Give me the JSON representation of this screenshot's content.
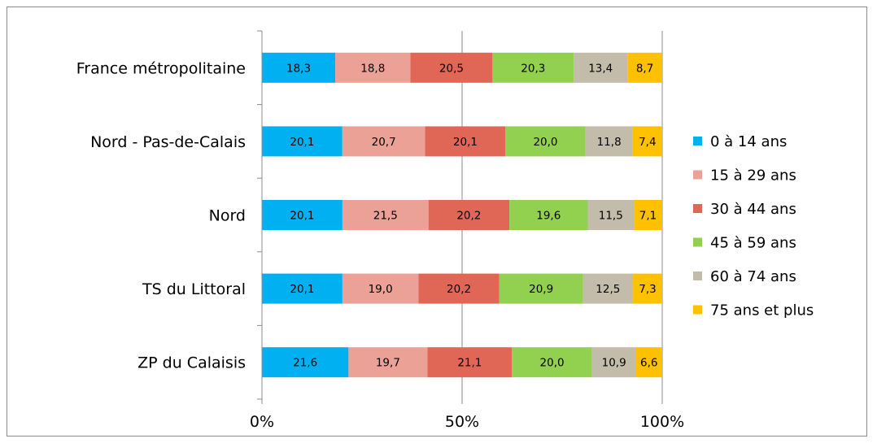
{
  "chart_data": {
    "type": "bar",
    "orientation": "horizontal",
    "stacked": "percent",
    "categories": [
      "France métropolitaine",
      "Nord - Pas-de-Calais",
      "Nord",
      "TS du Littoral",
      "ZP du Calaisis"
    ],
    "series": [
      {
        "name": "0 à 14 ans",
        "color": "#00b0f0",
        "values": [
          18.3,
          20.1,
          20.1,
          20.1,
          21.6
        ],
        "labels": [
          "18,3",
          "20,1",
          "20,1",
          "20,1",
          "21,6"
        ]
      },
      {
        "name": "15 à 29 ans",
        "color": "#eca196",
        "values": [
          18.8,
          20.7,
          21.5,
          19.0,
          19.7
        ],
        "labels": [
          "18,8",
          "20,7",
          "21,5",
          "19,0",
          "19,7"
        ]
      },
      {
        "name": "30 à 44 ans",
        "color": "#e06656",
        "values": [
          20.5,
          20.1,
          20.2,
          20.2,
          21.1
        ],
        "labels": [
          "20,5",
          "20,1",
          "20,2",
          "20,2",
          "21,1"
        ]
      },
      {
        "name": "45 à 59 ans",
        "color": "#92d050",
        "values": [
          20.3,
          20.0,
          19.6,
          20.9,
          20.0
        ],
        "labels": [
          "20,3",
          "20,0",
          "19,6",
          "20,9",
          "20,0"
        ]
      },
      {
        "name": "60 à 74 ans",
        "color": "#c4bcab",
        "values": [
          13.4,
          11.8,
          11.5,
          12.5,
          10.9
        ],
        "labels": [
          "13,4",
          "11,8",
          "11,5",
          "12,5",
          "10,9"
        ]
      },
      {
        "name": "75 ans et plus",
        "color": "#ffc000",
        "values": [
          8.7,
          7.4,
          7.1,
          7.3,
          6.6
        ],
        "labels": [
          "8,7",
          "7,4",
          "7,1",
          "7,3",
          "6,6"
        ]
      }
    ],
    "x_ticks": [
      "0%",
      "50%",
      "100%"
    ],
    "xlim": [
      0,
      100
    ],
    "grid": "vertical major gridlines",
    "legend": "right"
  }
}
